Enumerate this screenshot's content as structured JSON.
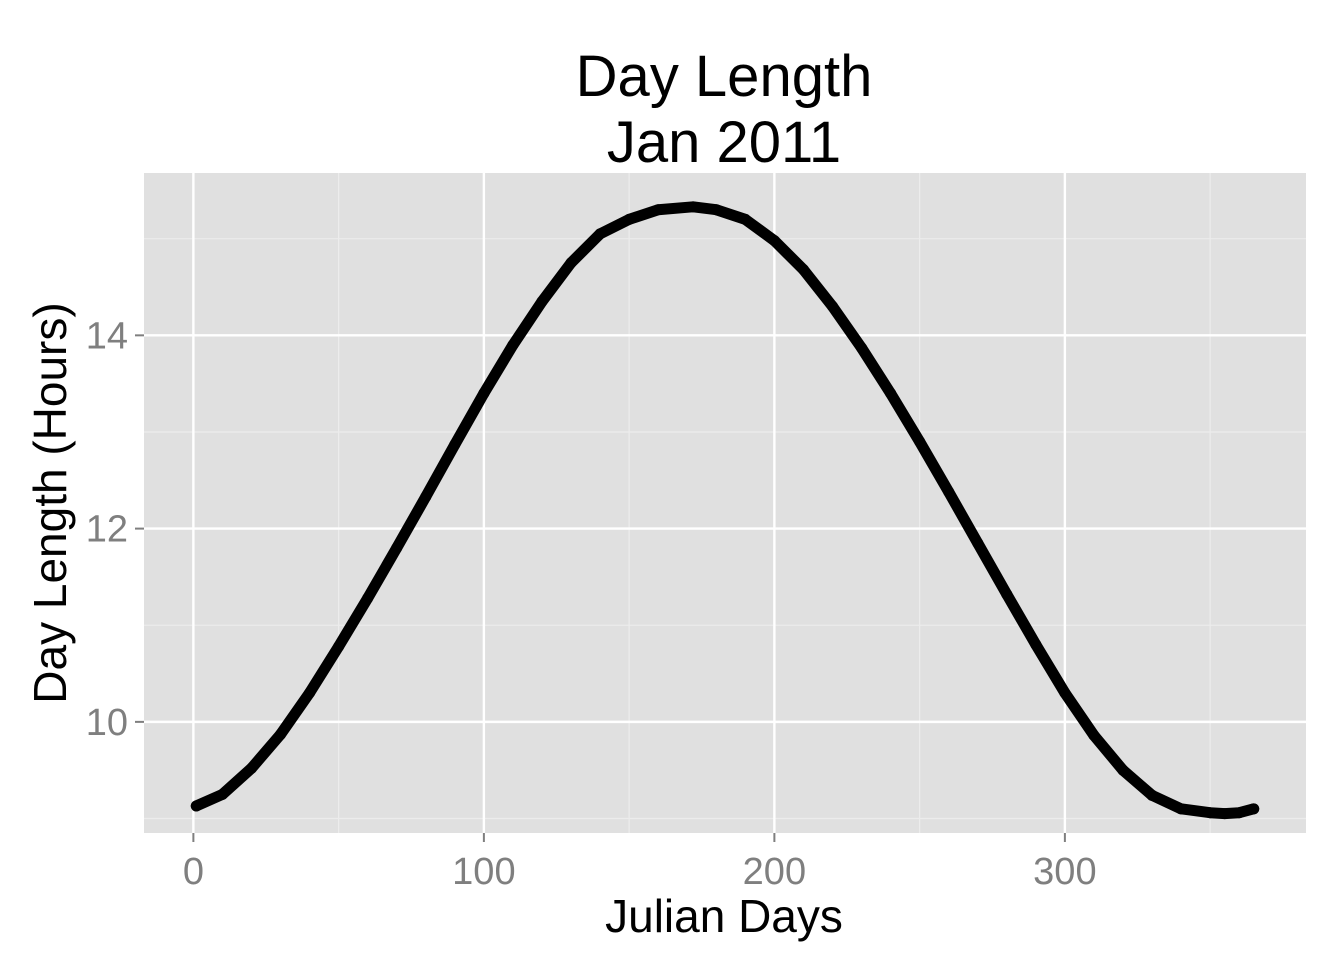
{
  "chart_data": {
    "type": "line",
    "title": "Day Length",
    "subtitle": "Jan 2011",
    "xlabel": "Julian Days",
    "ylabel": "Day Length (Hours)",
    "xlim": [
      -17,
      383
    ],
    "ylim": [
      8.85,
      15.68
    ],
    "x_ticks": [
      0,
      100,
      200,
      300
    ],
    "x_tick_labels": [
      "0",
      "100",
      "200",
      "300"
    ],
    "y_ticks": [
      10,
      12,
      14
    ],
    "y_tick_labels": [
      "10",
      "12",
      "14"
    ],
    "grid": true,
    "legend": "none",
    "colors": {
      "panel_background": "#e0e0e0",
      "grid_major": "#ffffff",
      "grid_minor": "#ececec",
      "line": "#000000",
      "tick_label": "#7f7f7f"
    },
    "series": [
      {
        "points": [
          [
            1,
            9.13
          ],
          [
            10,
            9.25
          ],
          [
            20,
            9.52
          ],
          [
            30,
            9.87
          ],
          [
            40,
            10.3
          ],
          [
            50,
            10.78
          ],
          [
            60,
            11.28
          ],
          [
            70,
            11.8
          ],
          [
            80,
            12.33
          ],
          [
            90,
            12.87
          ],
          [
            100,
            13.4
          ],
          [
            110,
            13.9
          ],
          [
            120,
            14.35
          ],
          [
            130,
            14.75
          ],
          [
            140,
            15.05
          ],
          [
            150,
            15.2
          ],
          [
            160,
            15.3
          ],
          [
            172,
            15.33
          ],
          [
            180,
            15.3
          ],
          [
            190,
            15.2
          ],
          [
            200,
            14.98
          ],
          [
            210,
            14.68
          ],
          [
            220,
            14.3
          ],
          [
            230,
            13.87
          ],
          [
            240,
            13.4
          ],
          [
            250,
            12.9
          ],
          [
            260,
            12.38
          ],
          [
            270,
            11.85
          ],
          [
            280,
            11.32
          ],
          [
            290,
            10.8
          ],
          [
            300,
            10.3
          ],
          [
            310,
            9.86
          ],
          [
            320,
            9.5
          ],
          [
            330,
            9.24
          ],
          [
            340,
            9.1
          ],
          [
            350,
            9.06
          ],
          [
            355,
            9.05
          ],
          [
            360,
            9.06
          ],
          [
            365,
            9.1
          ]
        ]
      }
    ]
  }
}
